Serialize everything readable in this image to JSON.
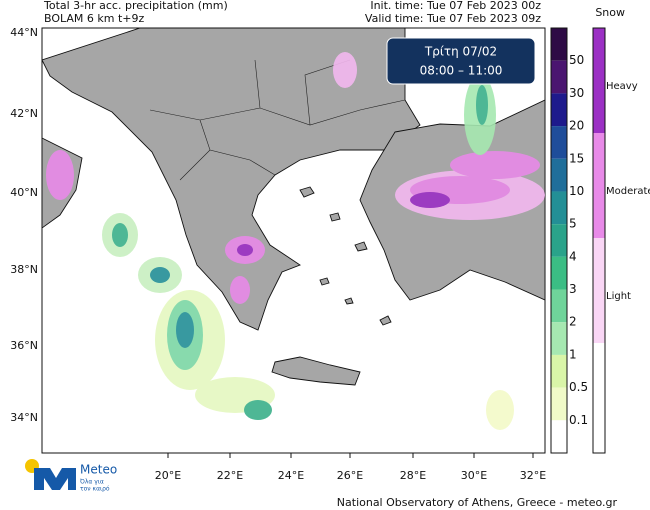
{
  "header": {
    "title": "Total 3-hr acc. precipitation (mm)",
    "model": "BOLAM 6 km t+9z",
    "init_time": "Init. time: Tue 07 Feb 2023 00z",
    "valid_time": "Valid time: Tue 07 Feb 2023 09z"
  },
  "time_box": {
    "day": "Τρίτη 07/02",
    "hours": "08:00 – 11:00"
  },
  "map": {
    "lat_labels": [
      "44°N",
      "42°N",
      "40°N",
      "38°N",
      "36°N",
      "34°N"
    ],
    "lon_labels": [
      "20°E",
      "22°E",
      "24°E",
      "26°E",
      "28°E",
      "30°E",
      "32°E"
    ]
  },
  "precip_legend": {
    "levels": [
      50,
      30,
      20,
      15,
      10,
      5,
      4,
      3,
      2,
      1,
      0.5,
      0.1
    ]
  },
  "snow_legend": {
    "title": "Snow",
    "levels": [
      "Heavy",
      "Moderate",
      "Light"
    ]
  },
  "logo": {
    "name": "Meteo",
    "tagline": [
      "Όλα για",
      "τον καιρό"
    ]
  },
  "footer": "National Observatory of Athens, Greece - meteo.gr"
}
